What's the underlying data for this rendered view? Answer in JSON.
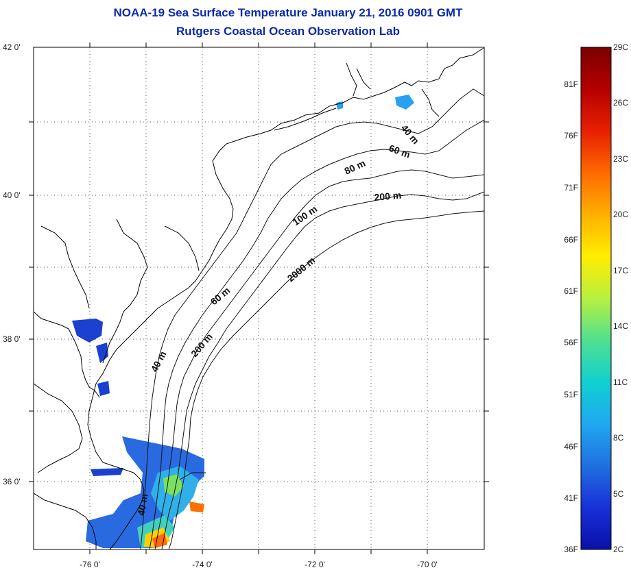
{
  "title": "NOAA-19 Sea Surface Temperature January 21, 2016 0901 GMT",
  "subtitle": "Rutgers Coastal Ocean Observation Lab",
  "map": {
    "lon_labels": [
      "-76 0'",
      "-74 0'",
      "-72 0'",
      "-70 0'"
    ],
    "lat_labels": [
      "42 0'",
      "40 0'",
      "38 0'",
      "36 0'"
    ]
  },
  "isobaths": [
    "40 m",
    "60 m",
    "80 m",
    "200 m",
    "100 m",
    "2000 m",
    "60 m",
    "200 m",
    "40 m",
    "40 m"
  ],
  "colorbar": {
    "celsius_labels": [
      "29C",
      "26C",
      "23C",
      "20C",
      "17C",
      "14C",
      "11C",
      "8C",
      "5C",
      "2C"
    ],
    "fahrenheit_labels": [
      "81F",
      "76F",
      "71F",
      "66F",
      "61F",
      "56F",
      "51F",
      "46F",
      "41F",
      "36F"
    ],
    "colors": [
      "#7a0000",
      "#b40000",
      "#e82000",
      "#ff6a00",
      "#ffb000",
      "#ffee00",
      "#b8f040",
      "#50e090",
      "#10d0d0",
      "#20a8f0",
      "#2070e0",
      "#1830d8",
      "#0a10a8"
    ]
  }
}
